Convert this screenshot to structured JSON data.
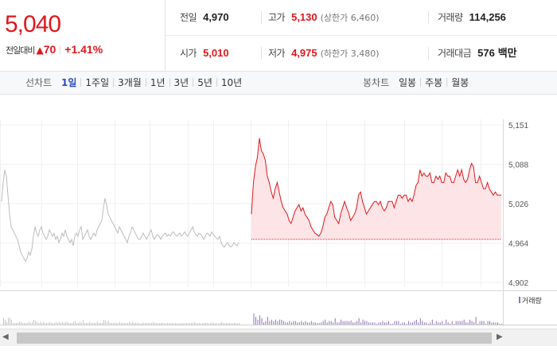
{
  "quote": {
    "current_price": "5,040",
    "change_label": "전일대비",
    "change_arrow": "▲",
    "change_value": "70",
    "change_rate": "+1.41%"
  },
  "stats": {
    "prev_close": {
      "label": "전일",
      "value": "4,970"
    },
    "high": {
      "label": "고가",
      "value": "5,130",
      "sub": "(상한가 6,460)"
    },
    "volume": {
      "label": "거래량",
      "value": "114,256"
    },
    "open": {
      "label": "시가",
      "value": "5,010"
    },
    "low": {
      "label": "저가",
      "value": "4,975",
      "sub": "(하한가 3,480)"
    },
    "trade_value": {
      "label": "거래대금",
      "value": "576",
      "unit": "백만"
    }
  },
  "toolbar": {
    "line_chart_label": "선차트",
    "line_tabs": [
      "1일",
      "1주일",
      "3개월",
      "1년",
      "3년",
      "5년",
      "10년"
    ],
    "active_line_tab": "1일",
    "candle_chart_label": "봉차트",
    "candle_tabs": [
      "일봉",
      "주봉",
      "월봉"
    ]
  },
  "colors": {
    "up": "#e0171d",
    "down": "#1f5bd6",
    "prev_day_line": "#bdbdbd",
    "volume_bar": "#8b76b8"
  },
  "icons": {
    "scroll_left": "triangle-left-icon",
    "scroll_right": "triangle-right-icon"
  },
  "chart_data": {
    "type": "line",
    "y_ticks": [
      "5,151",
      "5,088",
      "5,026",
      "4,964",
      "4,902"
    ],
    "ylim": [
      4902,
      5151
    ],
    "baseline_prev_close": 4970,
    "volume_legend": "거래량",
    "series": [
      {
        "values": [
          5030,
          5060,
          5080,
          5070,
          5040,
          5010,
          4990,
          4985,
          4980,
          4975,
          4970,
          4960,
          4950,
          4945,
          4940,
          4935,
          4940,
          4950,
          4945,
          4955,
          4975,
          4990,
          4980,
          4975,
          4985,
          4990,
          4980,
          4975,
          4970,
          4975,
          4985,
          4980,
          4975,
          4980,
          4970,
          4975,
          4965,
          4970,
          4980,
          4975,
          4985,
          4975,
          4970,
          4965,
          4970,
          4960,
          4975,
          4980,
          4975,
          4985,
          4990,
          4970,
          4975,
          4980,
          4985,
          4975,
          4970,
          4975,
          4980,
          4975,
          4985,
          4990,
          4995,
          5000,
          5020,
          5035,
          5025,
          5010,
          5005,
          5000,
          4995,
          4990,
          4985,
          4980,
          4990,
          4985,
          4980,
          4975,
          4970,
          4965,
          4975,
          4980,
          4990,
          4985,
          4980,
          4975,
          4970,
          4970,
          4975,
          4980,
          4975,
          4970,
          4975,
          4980,
          4985,
          4975,
          4970,
          4975,
          4978,
          4975,
          4970,
          4975,
          4978,
          4980,
          4975,
          4978,
          4975,
          4980,
          4982,
          4978,
          4975,
          4978,
          4980,
          4975,
          4978,
          4982,
          4978,
          4975,
          4980,
          4985,
          4990,
          4982,
          4978,
          4975,
          4980,
          4978,
          4975,
          4970,
          4975,
          4980,
          4978,
          4975,
          4982,
          4978,
          4975,
          4972,
          4970,
          4975,
          4965,
          4960,
          4958,
          4962,
          4965,
          4960,
          4958,
          4960,
          4965,
          4962,
          4960,
          4965
        ],
        "color": "#bdbdbd"
      },
      {
        "values": [
          5010,
          5060,
          5085,
          5100,
          5130,
          5110,
          5105,
          5095,
          5070,
          5060,
          5045,
          5035,
          5050,
          5060,
          5045,
          5030,
          5020,
          5015,
          5010,
          5000,
          4995,
          5005,
          5015,
          5020,
          5025,
          5015,
          5020,
          5010,
          5005,
          5000,
          4990,
          4985,
          4980,
          4978,
          4975,
          4980,
          4990,
          5005,
          5010,
          5020,
          5030,
          5025,
          5005,
          5000,
          4995,
          5010,
          5020,
          5030,
          5020,
          5012,
          5000,
          5005,
          5010,
          5020,
          5040,
          5045,
          5030,
          5020,
          5010,
          5015,
          5020,
          5025,
          5030,
          5030,
          5025,
          5030,
          5020,
          5015,
          5020,
          5030,
          5030,
          5030,
          5020,
          5030,
          5040,
          5040,
          5035,
          5040,
          5040,
          5030,
          5035,
          5030,
          5040,
          5055,
          5060,
          5080,
          5070,
          5075,
          5070,
          5070,
          5075,
          5060,
          5060,
          5070,
          5065,
          5070,
          5060,
          5060,
          5075,
          5070,
          5070,
          5060,
          5060,
          5070,
          5080,
          5070,
          5080,
          5065,
          5060,
          5065,
          5080,
          5090,
          5085,
          5060,
          5060,
          5070,
          5060,
          5050,
          5050,
          5060,
          5050,
          5045,
          5040,
          5045,
          5040,
          5040,
          5040
        ]
      }
    ]
  }
}
